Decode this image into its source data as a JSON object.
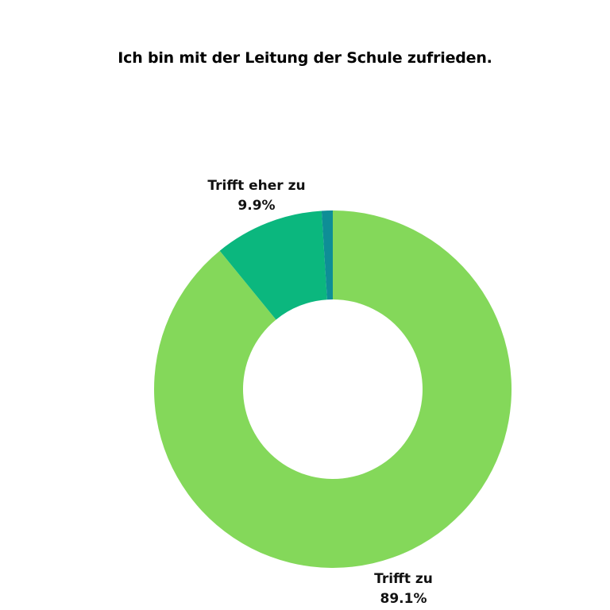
{
  "chart_data": {
    "type": "pie",
    "style": "donut",
    "title": "Ich bin mit der Leitung der Schule zufrieden.",
    "slices": [
      {
        "label": "Trifft zu",
        "value": 89.1,
        "value_label": "89.1%",
        "color": "#84d85a"
      },
      {
        "label": "Trifft eher zu",
        "value": 9.9,
        "value_label": "9.9%",
        "color": "#0bb77e"
      },
      {
        "label": "",
        "value": 1.0,
        "value_label": "",
        "color": "#0e8e96"
      }
    ],
    "legend": "none"
  }
}
